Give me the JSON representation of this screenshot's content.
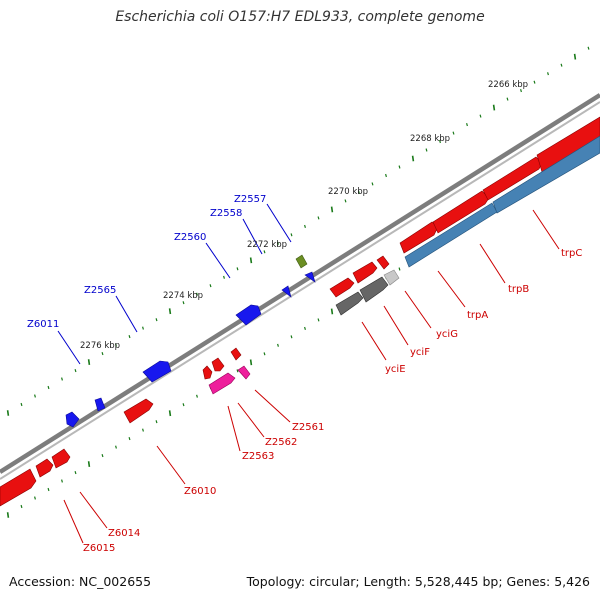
{
  "title": "Escherichia coli O157:H7 EDL933, complete genome",
  "footer": {
    "accession": "Accession: NC_002655",
    "stats": "Topology: circular; Length: 5,528,445 bp; Genes: 5,426"
  },
  "colors": {
    "backbone": "#8a8a8a",
    "tick": "#1a7a1a",
    "ruler_text": "#222222",
    "gene_forward": "#e81010",
    "gene_reverse": "#1010e6",
    "gene_pink": "#ee1f9c",
    "gene_gray": "#6a6a6a",
    "gene_light_gray": "#c8c8c8",
    "gene_olive": "#6b8e23",
    "gene_steel_blue": "#4682b4",
    "label_forward": "#cc0000",
    "label_reverse": "#0000cc"
  },
  "ruler": {
    "labels": [
      "2266 kbp",
      "2268 kbp",
      "2270 kbp",
      "2272 kbp",
      "2274 kbp",
      "2276 kbp"
    ]
  },
  "gene_labels": {
    "reverse": [
      "Z2557",
      "Z2558",
      "Z2560",
      "Z2565",
      "Z6011"
    ],
    "forward": [
      "trpC",
      "trpB",
      "trpA",
      "yciG",
      "yciF",
      "yciE",
      "Z2561",
      "Z2562",
      "Z2563",
      "Z6010",
      "Z6014",
      "Z6015"
    ]
  }
}
